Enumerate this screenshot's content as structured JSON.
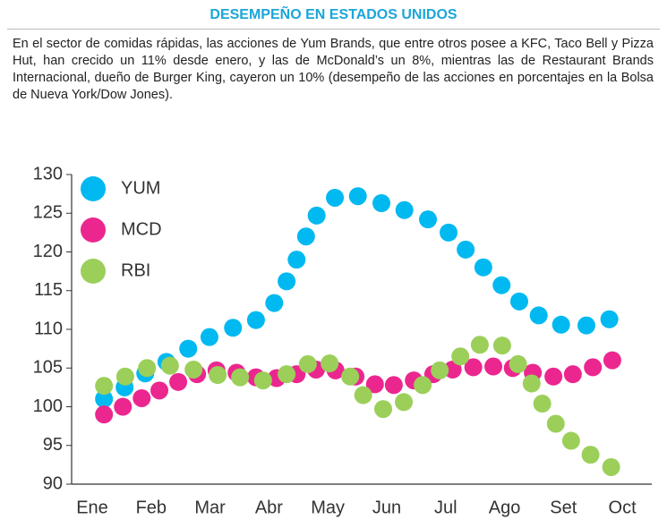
{
  "chart_data": {
    "type": "scatter",
    "title": "DESEMPEÑO EN ESTADOS UNIDOS",
    "subtitle": "En el sector de comidas rápidas, las acciones de Yum Brands, que entre otros posee a KFC, Taco Bell y Pizza Hut, han crecido un 11% desde enero, y las de McDonald’s un 8%, mientras las de Restaurant Brands Internacional, dueño de Burger King, cayeron un 10% (desempeño de las acciones en porcentajes en la Bolsa de Nueva York/Dow Jones).",
    "xlim": [
      -0.35,
      9.5
    ],
    "xticks": [
      {
        "value": 0,
        "label": "Ene"
      },
      {
        "value": 1,
        "label": "Feb"
      },
      {
        "value": 2,
        "label": "Mar"
      },
      {
        "value": 3,
        "label": "Abr"
      },
      {
        "value": 4,
        "label": "May"
      },
      {
        "value": 5,
        "label": "Jun"
      },
      {
        "value": 6,
        "label": "Jul"
      },
      {
        "value": 7,
        "label": "Ago"
      },
      {
        "value": 8,
        "label": "Set"
      },
      {
        "value": 9,
        "label": "Oct"
      }
    ],
    "ylim": [
      90,
      130
    ],
    "yticks": [
      90,
      95,
      100,
      105,
      110,
      115,
      120,
      125,
      130
    ],
    "legend": "top-left",
    "series": [
      {
        "name": "YUM",
        "color": "#00b9f1",
        "x": [
          0.2,
          0.55,
          0.9,
          1.26,
          1.63,
          1.99,
          2.39,
          2.78,
          3.09,
          3.3,
          3.47,
          3.63,
          3.81,
          4.12,
          4.51,
          4.91,
          5.3,
          5.7,
          6.05,
          6.34,
          6.64,
          6.95,
          7.25,
          7.58,
          7.96,
          8.39,
          8.78
        ],
        "values": [
          101,
          102.5,
          104.3,
          105.8,
          107.5,
          109,
          110.2,
          111.2,
          113.4,
          116.2,
          119,
          122,
          124.7,
          127,
          127.2,
          126.3,
          125.4,
          124.2,
          122.5,
          120.3,
          118,
          115.7,
          113.6,
          111.8,
          110.6,
          110.5,
          111.3
        ]
      },
      {
        "name": "MCD",
        "color": "#ec268f",
        "x": [
          0.2,
          0.52,
          0.84,
          1.14,
          1.46,
          1.78,
          2.11,
          2.45,
          2.78,
          3.13,
          3.47,
          3.8,
          4.13,
          4.47,
          4.8,
          5.12,
          5.46,
          5.79,
          6.12,
          6.47,
          6.81,
          7.14,
          7.48,
          7.83,
          8.16,
          8.5,
          8.83
        ],
        "values": [
          99,
          100,
          101.1,
          102.1,
          103.2,
          104.2,
          104.7,
          104.4,
          103.8,
          103.7,
          104.2,
          104.8,
          104.7,
          103.9,
          102.9,
          102.8,
          103.4,
          104.2,
          104.8,
          105.1,
          105.2,
          105,
          104.4,
          103.9,
          104.2,
          105.1,
          106
        ]
      },
      {
        "name": "RBI",
        "color": "#9bcf5a",
        "x": [
          0.2,
          0.56,
          0.93,
          1.32,
          1.72,
          2.13,
          2.51,
          2.9,
          3.3,
          3.66,
          4.03,
          4.38,
          4.6,
          4.94,
          5.29,
          5.61,
          5.9,
          6.25,
          6.58,
          6.96,
          7.23,
          7.46,
          7.64,
          7.87,
          8.13,
          8.46,
          8.81
        ],
        "values": [
          102.7,
          103.9,
          105,
          105.3,
          104.8,
          104.1,
          103.8,
          103.4,
          104.2,
          105.5,
          105.6,
          103.9,
          101.5,
          99.7,
          100.6,
          102.8,
          104.7,
          106.5,
          108,
          107.9,
          105.5,
          103,
          100.4,
          97.8,
          95.6,
          93.8,
          92.2
        ]
      }
    ]
  }
}
